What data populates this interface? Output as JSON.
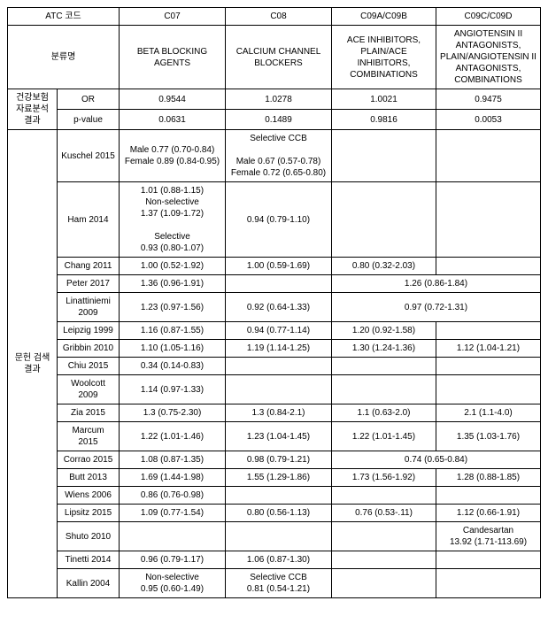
{
  "header": {
    "atc_code": "ATC 코드",
    "c07": "C07",
    "c08": "C08",
    "c09ab": "C09A/C09B",
    "c09cd": "C09C/C09D"
  },
  "class_row": {
    "label": "분류명",
    "c07": "BETA BLOCKING AGENTS",
    "c08": "CALCIUM CHANNEL\nBLOCKERS",
    "c09ab": "ACE INHIBITORS,\nPLAIN/ACE INHIBITORS,\nCOMBINATIONS",
    "c09cd": "ANGIOTENSIN II\nANTAGONISTS,\nPLAIN/ANGIOTENSIN II\nANTAGONISTS,\nCOMBINATIONS"
  },
  "insurance": {
    "group_label": "건강보험\n자료분석\n결과",
    "or_label": "OR",
    "or_c07": "0.9544",
    "or_c08": "1.0278",
    "or_c09ab": "1.0021",
    "or_c09cd": "0.9475",
    "p_label": "p-value",
    "p_c07": "0.0631",
    "p_c08": "0.1489",
    "p_c09ab": "0.9816",
    "p_c09cd": "0.0053"
  },
  "lit": {
    "group_label": "문헌 검색\n결과",
    "rows": {
      "kuschel": {
        "ref": "Kuschel 2015",
        "c07": "Male 0.77 (0.70-0.84)\nFemale 0.89 (0.84-0.95)",
        "c08": "Selective CCB\n\nMale  0.67 (0.57-0.78)\nFemale 0.72 (0.65-0.80)",
        "c09ab": "",
        "c09cd": ""
      },
      "ham": {
        "ref": "Ham 2014",
        "c07": "1.01 (0.88-1.15)\nNon-selective\n1.37 (1.09-1.72)\n\nSelective\n0.93 (0.80-1.07)",
        "c08": "0.94 (0.79-1.10)",
        "c09ab": "",
        "c09cd": ""
      },
      "chang": {
        "ref": "Chang 2011",
        "c07": "1.00 (0.52-1.92)",
        "c08": "1.00 (0.59-1.69)",
        "c09ab": "0.80 (0.32-2.03)",
        "c09cd": ""
      },
      "peter": {
        "ref": "Peter 2017",
        "c07": "1.36 (0.96-1.91)",
        "c08": "",
        "merged": "1.26 (0.86-1.84)"
      },
      "linattiniemi": {
        "ref": "Linattiniemi\n2009",
        "c07": "1.23 (0.97-1.56)",
        "c08": "0.92 (0.64-1.33)",
        "merged": "0.97 (0.72-1.31)"
      },
      "leipzig": {
        "ref": "Leipzig 1999",
        "c07": "1.16 (0.87-1.55)",
        "c08": "0.94 (0.77-1.14)",
        "c09ab": "1.20 (0.92-1.58)",
        "c09cd": ""
      },
      "gribbin": {
        "ref": "Gribbin 2010",
        "c07": "1.10 (1.05-1.16)",
        "c08": "1.19 (1.14-1.25)",
        "c09ab": "1.30 (1.24-1.36)",
        "c09cd": "1.12 (1.04-1.21)"
      },
      "chiu": {
        "ref": "Chiu 2015",
        "c07": "0.34 (0.14-0.83)",
        "c08": "",
        "c09ab": "",
        "c09cd": ""
      },
      "woolcott": {
        "ref": "Woolcott 2009",
        "c07": "1.14 (0.97-1.33)",
        "c08": "",
        "c09ab": "",
        "c09cd": ""
      },
      "zia": {
        "ref": "Zia 2015",
        "c07": "1.3 (0.75-2.30)",
        "c08": "1.3 (0.84-2.1)",
        "c09ab": "1.1 (0.63-2.0)",
        "c09cd": "2.1 (1.1-4.0)"
      },
      "marcum": {
        "ref": "Marcum 2015",
        "c07": "1.22 (1.01-1.46)",
        "c08": "1.23 (1.04-1.45)",
        "c09ab": "1.22 (1.01-1.45)",
        "c09cd": "1.35 (1.03-1.76)"
      },
      "corrao": {
        "ref": "Corrao 2015",
        "c07": "1.08 (0.87-1.35)",
        "c08": "0.98 (0.79-1.21)",
        "merged": "0.74 (0.65-0.84)"
      },
      "butt": {
        "ref": "Butt 2013",
        "c07": "1.69 (1.44-1.98)",
        "c08": "1.55 (1.29-1.86)",
        "c09ab": "1.73 (1.56-1.92)",
        "c09cd": "1.28 (0.88-1.85)"
      },
      "wiens": {
        "ref": "Wiens 2006",
        "c07": "0.86 (0.76-0.98)",
        "c08": "",
        "c09ab": "",
        "c09cd": ""
      },
      "lipsitz": {
        "ref": "Lipsitz 2015",
        "c07": "1.09 (0.77-1.54)",
        "c08": "0.80 (0.56-1.13)",
        "c09ab": "0.76 (0.53-.11)",
        "c09cd": "1.12 (0.66-1.91)"
      },
      "shuto": {
        "ref": "Shuto 2010",
        "c07": "",
        "c08": "",
        "c09ab": "",
        "c09cd": "Candesartan\n13.92 (1.71-113.69)"
      },
      "tinetti": {
        "ref": "Tinetti 2014",
        "c07": "0.96 (0.79-1.17)",
        "c08": "1.06 (0.87-1.30)",
        "c09ab": "",
        "c09cd": ""
      },
      "kallin": {
        "ref": "Kallin 2004",
        "c07": "Non-selective\n0.95 (0.60-1.49)",
        "c08": "Selective CCB\n0.81 (0.54-1.21)",
        "c09ab": "",
        "c09cd": ""
      }
    }
  }
}
